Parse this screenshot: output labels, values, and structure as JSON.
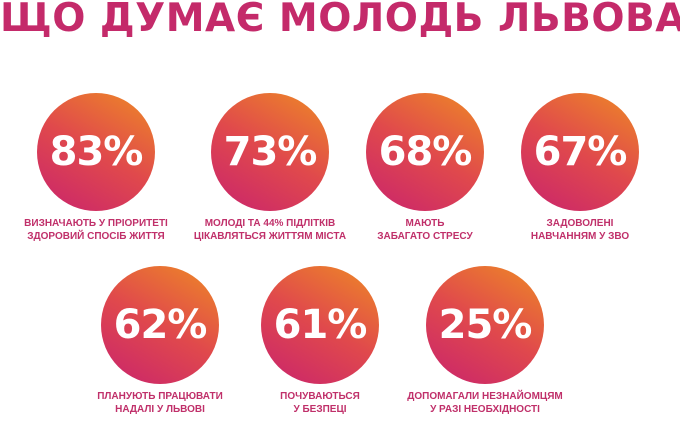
{
  "title": "ЩО ДУМАЄ МОЛОДЬ ЛЬВОВА?",
  "colors": {
    "title": "#c42a6a",
    "gradient_start": "#c9236d",
    "gradient_end": "#ee8a25",
    "caption": "#c0306a"
  },
  "stats": [
    {
      "value": "83%",
      "caption_1": "ВИЗНАЧАЮТЬ У ПРІОРИТЕТІ",
      "caption_2": "ЗДОРОВИЙ СПОСІБ ЖИТТЯ"
    },
    {
      "value": "73%",
      "caption_1": "МОЛОДІ ТА 44% ПІДЛІТКІВ",
      "caption_2": "ЦІКАВЛЯТЬСЯ ЖИТТЯМ МІСТА"
    },
    {
      "value": "68%",
      "caption_1": "МАЮТЬ",
      "caption_2": "ЗАБАГАТО СТРЕСУ"
    },
    {
      "value": "67%",
      "caption_1": "ЗАДОВОЛЕНІ",
      "caption_2": "НАВЧАННЯМ У ЗВО"
    },
    {
      "value": "62%",
      "caption_1": "ПЛАНУЮТЬ ПРАЦЮВАТИ",
      "caption_2": "НАДАЛІ У ЛЬВОВІ"
    },
    {
      "value": "61%",
      "caption_1": "ПОЧУВАЮТЬСЯ",
      "caption_2": "У БЕЗПЕЦІ"
    },
    {
      "value": "25%",
      "caption_1": "ДОПОМАГАЛИ НЕЗНАЙОМЦЯМ",
      "caption_2": "У РАЗІ НЕОБХІДНОСТІ"
    }
  ]
}
